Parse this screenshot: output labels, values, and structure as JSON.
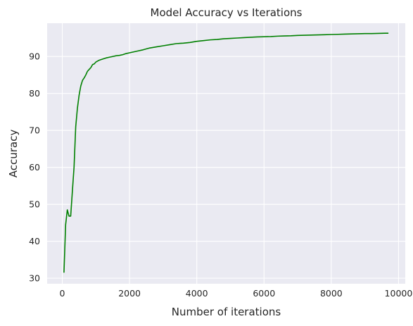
{
  "chart_data": {
    "type": "line",
    "title": "Model Accuracy vs Iterations",
    "xlabel": "Number of iterations",
    "ylabel": "Accuracy",
    "xlim": [
      -450,
      10200
    ],
    "ylim": [
      28.5,
      99
    ],
    "xticks": [
      0,
      2000,
      4000,
      6000,
      8000,
      10000
    ],
    "yticks": [
      30,
      40,
      50,
      60,
      70,
      80,
      90
    ],
    "grid": true,
    "colors": {
      "background": "#eaeaf2",
      "grid": "#ffffff",
      "line": "#008000"
    },
    "series": [
      {
        "x": [
          50,
          100,
          150,
          200,
          250,
          300,
          350,
          400,
          450,
          500,
          550,
          600,
          650,
          700,
          750,
          800,
          850,
          900,
          950,
          1000,
          1100,
          1200,
          1300,
          1400,
          1500,
          1600,
          1700,
          1800,
          1900,
          2000,
          2200,
          2400,
          2600,
          2800,
          3000,
          3200,
          3400,
          3600,
          3800,
          4000,
          4200,
          4400,
          4600,
          4800,
          5000,
          5200,
          5400,
          5600,
          5800,
          6000,
          6200,
          6400,
          6600,
          6800,
          7000,
          7200,
          7400,
          7600,
          7800,
          8000,
          8200,
          8400,
          8600,
          8800,
          9000,
          9200,
          9400,
          9600,
          9700
        ],
        "y": [
          31.5,
          44.5,
          48.5,
          46.8,
          46.8,
          53.5,
          60.0,
          71.0,
          76.0,
          79.5,
          82.0,
          83.5,
          84.2,
          85.0,
          86.0,
          86.5,
          87.0,
          87.8,
          88.0,
          88.5,
          89.0,
          89.3,
          89.6,
          89.8,
          90.0,
          90.2,
          90.3,
          90.5,
          90.8,
          91.0,
          91.4,
          91.8,
          92.3,
          92.6,
          92.9,
          93.2,
          93.5,
          93.6,
          93.8,
          94.1,
          94.3,
          94.5,
          94.6,
          94.8,
          94.9,
          95.0,
          95.1,
          95.2,
          95.3,
          95.35,
          95.4,
          95.5,
          95.55,
          95.6,
          95.7,
          95.75,
          95.8,
          95.85,
          95.9,
          95.95,
          96.0,
          96.05,
          96.1,
          96.15,
          96.2,
          96.2,
          96.25,
          96.3,
          96.3
        ]
      }
    ]
  }
}
